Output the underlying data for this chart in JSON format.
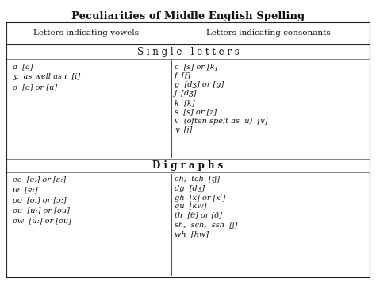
{
  "title": "Peculiarities of Middle English Spelling",
  "col1_header": "Letters indicating vowels",
  "col2_header": "Letters indicating consonants",
  "section1_title": "S i n g l e   l e t t e r s",
  "section2_title": "D i g r a p h s",
  "col1_single": [
    "a  [a]",
    "y,  as well as ı  [i]",
    "o  [o] or [u]"
  ],
  "col2_single": [
    "c  [s] or [k]",
    "f  [f]",
    "g  [dʒ] or [g]",
    "j  [dʒ]",
    "k  [k]",
    "s  [s] or [z]",
    "v  (often spelt as  u)  [v]",
    "y  [j]"
  ],
  "col1_digraphs": [
    "ee  [e:] or [ɛ:]",
    "ie  [e:]",
    "oo  [o:] or [ɔ:]",
    "ou  [u:] or [ou]",
    "ow  [u:] or [ou]"
  ],
  "col2_digraphs": [
    "ch,  tch  [tʃ]",
    "dg  [dʒ]",
    "gh  [x] or [xʹ]",
    "qu  [kw]",
    "th  [θ] or [ð]",
    "sh,  sch,  ssh  [ʃ]",
    "wh  [hw]"
  ],
  "bg_color": "#ffffff",
  "text_color": "#111111",
  "border_color": "#222222",
  "title_fontsize": 9.5,
  "header_fontsize": 7.5,
  "body_fontsize": 7,
  "section_fontsize": 8.5
}
